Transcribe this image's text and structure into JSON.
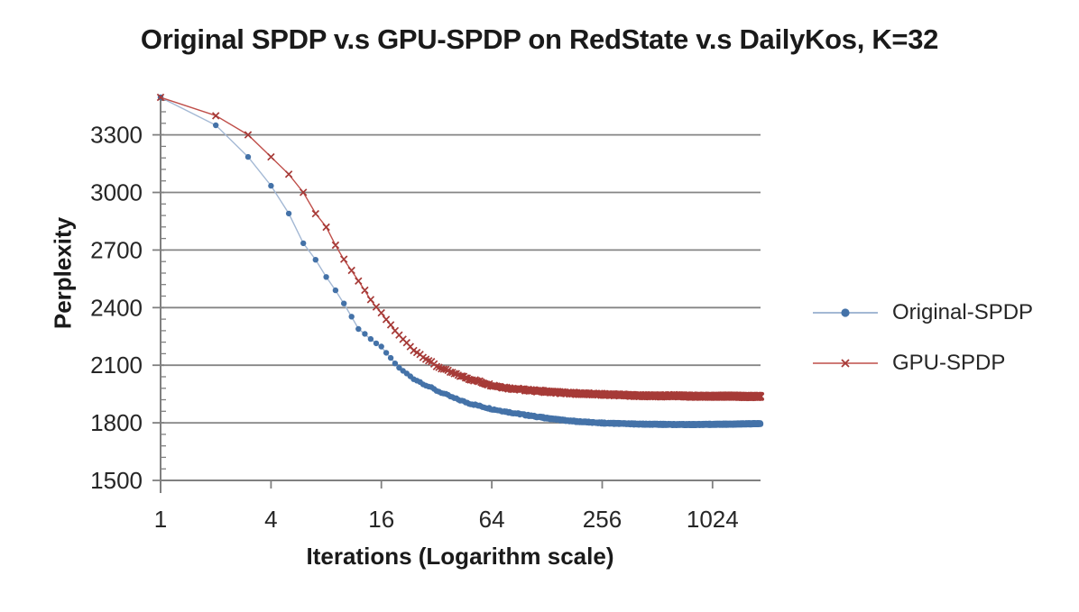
{
  "chart_data": {
    "type": "line",
    "title": "Original SPDP v.s GPU-SPDP on RedState v.s DailyKos, K=32",
    "xlabel": "Iterations (Logarithm scale)",
    "ylabel": "Perplexity",
    "x_scale": "log",
    "log_base": 4,
    "xlim": [
      1,
      1870
    ],
    "ylim": [
      1500,
      3500
    ],
    "x_ticks": [
      1,
      4,
      16,
      64,
      256,
      1024
    ],
    "y_ticks": [
      1500,
      1800,
      2100,
      2400,
      2700,
      3000,
      3300
    ],
    "y_minor_unit": 60,
    "grid": "horizontal-major",
    "legend_position": "right",
    "markers_at_every_iteration": true,
    "colors": {
      "grid": "#858585",
      "axis": "#808080",
      "tick_text": "#262626",
      "title_text": "#1a1a1a"
    },
    "series": [
      {
        "name": "Original-SPDP",
        "marker": "circle",
        "line_color": "#a3b8d4",
        "marker_color": "#4472a8",
        "band_jitter": 8,
        "anchors": [
          [
            1,
            3495
          ],
          [
            2,
            3350
          ],
          [
            3,
            3185
          ],
          [
            4,
            3035
          ],
          [
            5,
            2890
          ],
          [
            6,
            2735
          ],
          [
            7,
            2650
          ],
          [
            8,
            2560
          ],
          [
            9,
            2490
          ],
          [
            10,
            2420
          ],
          [
            12,
            2290
          ],
          [
            14,
            2235
          ],
          [
            16,
            2195
          ],
          [
            20,
            2085
          ],
          [
            24,
            2030
          ],
          [
            32,
            1968
          ],
          [
            40,
            1928
          ],
          [
            48,
            1902
          ],
          [
            64,
            1872
          ],
          [
            80,
            1855
          ],
          [
            96,
            1842
          ],
          [
            128,
            1824
          ],
          [
            160,
            1813
          ],
          [
            192,
            1806
          ],
          [
            256,
            1799
          ],
          [
            320,
            1796
          ],
          [
            384,
            1794
          ],
          [
            512,
            1792
          ],
          [
            640,
            1791
          ],
          [
            768,
            1791
          ],
          [
            1024,
            1792
          ],
          [
            1300,
            1793
          ],
          [
            1600,
            1795
          ],
          [
            1870,
            1796
          ]
        ]
      },
      {
        "name": "GPU-SPDP",
        "marker": "x",
        "line_color": "#bf4e49",
        "marker_color": "#a63a37",
        "band_jitter": 10,
        "anchors": [
          [
            1,
            3495
          ],
          [
            2,
            3400
          ],
          [
            3,
            3300
          ],
          [
            4,
            3185
          ],
          [
            5,
            3095
          ],
          [
            6,
            3000
          ],
          [
            7,
            2890
          ],
          [
            8,
            2820
          ],
          [
            9,
            2725
          ],
          [
            10,
            2650
          ],
          [
            12,
            2540
          ],
          [
            14,
            2440
          ],
          [
            16,
            2370
          ],
          [
            20,
            2255
          ],
          [
            24,
            2180
          ],
          [
            32,
            2095
          ],
          [
            40,
            2055
          ],
          [
            48,
            2030
          ],
          [
            64,
            1996
          ],
          [
            80,
            1980
          ],
          [
            96,
            1972
          ],
          [
            128,
            1962
          ],
          [
            160,
            1956
          ],
          [
            192,
            1952
          ],
          [
            256,
            1948
          ],
          [
            384,
            1942
          ],
          [
            512,
            1940
          ],
          [
            640,
            1941
          ],
          [
            768,
            1939
          ],
          [
            1024,
            1938
          ],
          [
            1300,
            1939
          ],
          [
            1600,
            1937
          ],
          [
            1870,
            1938
          ]
        ]
      }
    ]
  }
}
